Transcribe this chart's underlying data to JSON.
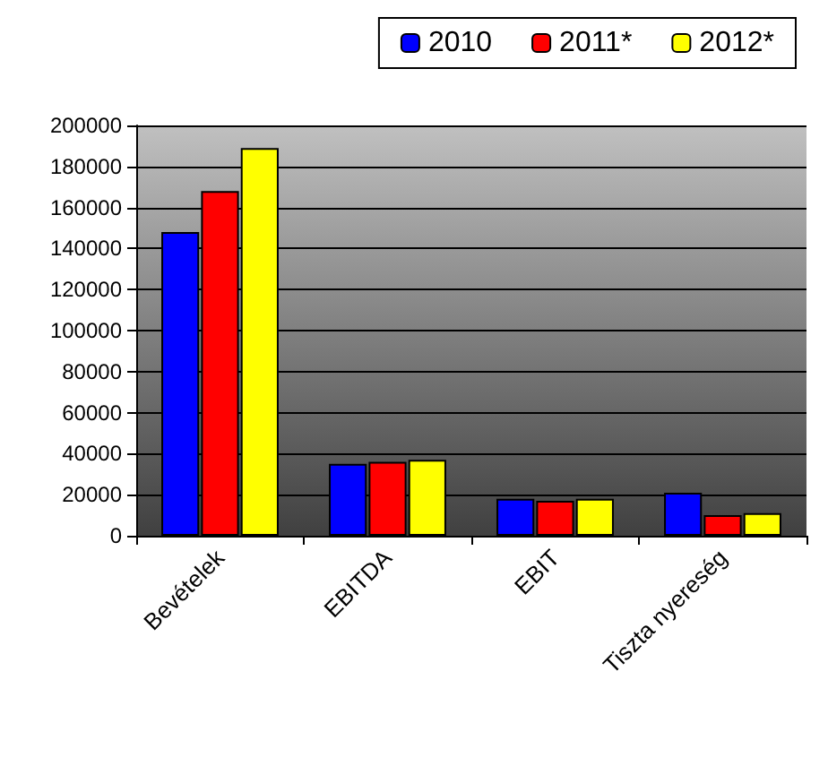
{
  "chart_data": {
    "type": "bar",
    "categories": [
      "Bevételek",
      "EBITDA",
      "EBIT",
      "Tiszta nyereség"
    ],
    "series": [
      {
        "name": "2010",
        "color": "#0000ff",
        "values": [
          148000,
          35000,
          18000,
          21000
        ]
      },
      {
        "name": "2011*",
        "color": "#ff0000",
        "values": [
          168000,
          36000,
          17000,
          10000
        ]
      },
      {
        "name": "2012*",
        "color": "#ffff00",
        "values": [
          189000,
          37000,
          18000,
          11000
        ]
      }
    ],
    "ylim": [
      0,
      200000
    ],
    "yticks": [
      0,
      20000,
      40000,
      60000,
      80000,
      100000,
      120000,
      140000,
      160000,
      180000,
      200000
    ],
    "grid": "y",
    "legend": "top right"
  }
}
